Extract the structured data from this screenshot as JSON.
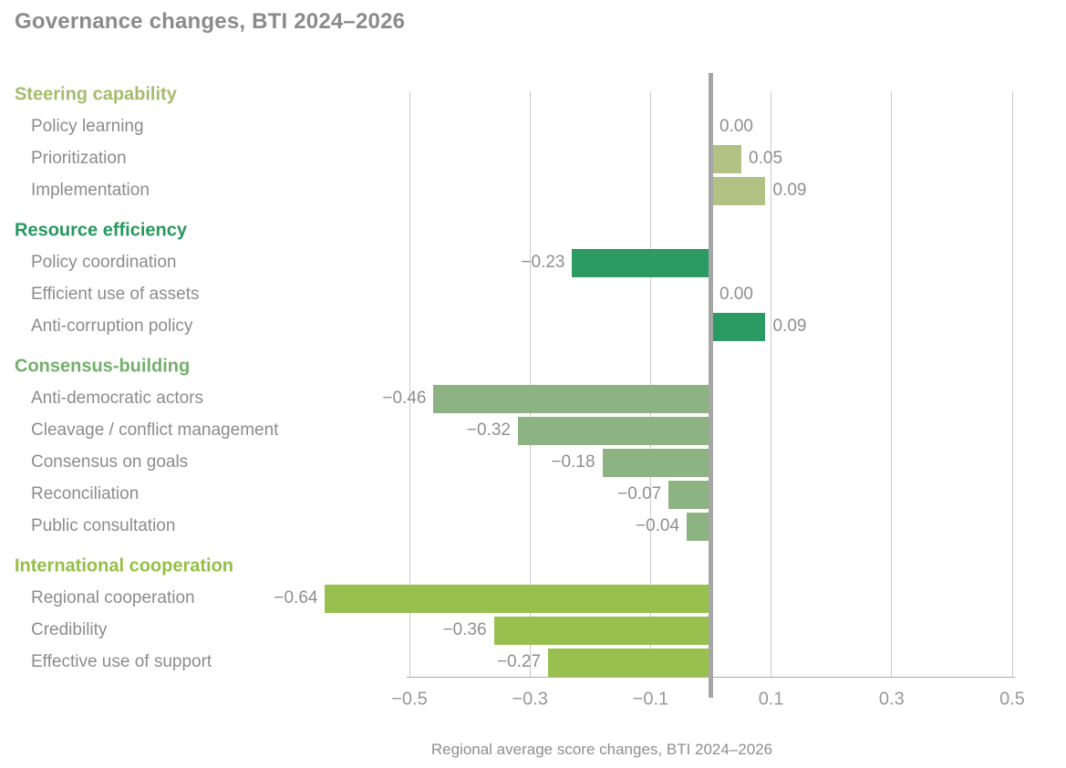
{
  "title": "Governance changes, BTI 2024–2026",
  "chart_data": {
    "type": "bar",
    "orientation": "horizontal",
    "title": "Governance changes, BTI 2024–2026",
    "xlabel": "Regional average score changes, BTI 2024–2026",
    "xlim": [
      -0.55,
      0.55
    ],
    "grid": true,
    "x_ticks": [
      {
        "value": -0.5,
        "label": "−0.5"
      },
      {
        "value": -0.3,
        "label": "−0.3"
      },
      {
        "value": -0.1,
        "label": "−0.1"
      },
      {
        "value": 0.1,
        "label": "0.1"
      },
      {
        "value": 0.3,
        "label": "0.3"
      },
      {
        "value": 0.5,
        "label": "0.5"
      }
    ],
    "groups": [
      {
        "name": "Steering capability",
        "header_color": "#a5bc6d",
        "bar_color": "#b1c284",
        "items": [
          {
            "label": "Policy learning",
            "value": 0.0,
            "value_label": "0.00"
          },
          {
            "label": "Prioritization",
            "value": 0.05,
            "value_label": "0.05"
          },
          {
            "label": "Implementation",
            "value": 0.09,
            "value_label": "0.09"
          }
        ]
      },
      {
        "name": "Resource efficiency",
        "header_color": "#27985f",
        "bar_color": "#2b9a63",
        "items": [
          {
            "label": "Policy coordination",
            "value": -0.23,
            "value_label": "−0.23"
          },
          {
            "label": "Efficient use of assets",
            "value": 0.0,
            "value_label": "0.00"
          },
          {
            "label": "Anti-corruption policy",
            "value": 0.09,
            "value_label": "0.09"
          }
        ]
      },
      {
        "name": "Consensus-building",
        "header_color": "#74af6d",
        "bar_color": "#8db383",
        "items": [
          {
            "label": "Anti-democratic actors",
            "value": -0.46,
            "value_label": "−0.46"
          },
          {
            "label": "Cleavage / conflict management",
            "value": -0.32,
            "value_label": "−0.32"
          },
          {
            "label": "Consensus on goals",
            "value": -0.18,
            "value_label": "−0.18"
          },
          {
            "label": "Reconciliation",
            "value": -0.07,
            "value_label": "−0.07"
          },
          {
            "label": "Public consultation",
            "value": -0.04,
            "value_label": "−0.04"
          }
        ]
      },
      {
        "name": "International cooperation",
        "header_color": "#94bf45",
        "bar_color": "#97c04f",
        "items": [
          {
            "label": "Regional cooperation",
            "value": -0.64,
            "value_label": "−0.64"
          },
          {
            "label": "Credibility",
            "value": -0.36,
            "value_label": "−0.36"
          },
          {
            "label": "Effective use of support",
            "value": -0.27,
            "value_label": "−0.27"
          }
        ]
      }
    ]
  }
}
